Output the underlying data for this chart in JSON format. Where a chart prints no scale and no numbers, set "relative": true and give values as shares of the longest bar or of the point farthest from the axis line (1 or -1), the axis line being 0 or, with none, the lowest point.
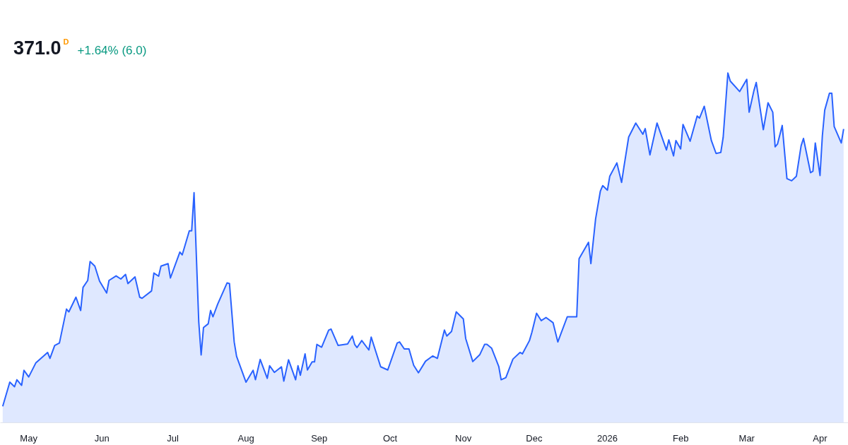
{
  "chart_data": {
    "type": "area",
    "title": "371.0",
    "annotations": [
      "D",
      "+1.64% (6.0)"
    ],
    "relative": true,
    "color": "#2962ff",
    "line_style": "solid",
    "tick_labels": "x",
    "xlim": [
      "2025-04-19",
      "2026-04-13"
    ],
    "xticks": [
      {
        "value": "2025-05-01",
        "label": "May"
      },
      {
        "value": "2025-06-01",
        "label": "Jun"
      },
      {
        "value": "2025-07-01",
        "label": "Jul"
      },
      {
        "value": "2025-08-01",
        "label": "Aug"
      },
      {
        "value": "2025-09-01",
        "label": "Sep"
      },
      {
        "value": "2025-10-01",
        "label": "Oct"
      },
      {
        "value": "2025-11-01",
        "label": "Nov"
      },
      {
        "value": "2025-12-01",
        "label": "Dec"
      },
      {
        "value": "2026-01-01",
        "label": "2026"
      },
      {
        "value": "2026-02-01",
        "label": "Feb"
      },
      {
        "value": "2026-03-01",
        "label": "Mar"
      },
      {
        "value": "2026-04-01",
        "label": "Apr"
      }
    ],
    "x": [
      "2025-04-20",
      "2025-04-23",
      "2025-04-25",
      "2025-04-26",
      "2025-04-28",
      "2025-04-29",
      "2025-05-01",
      "2025-05-04",
      "2025-05-09",
      "2025-05-10",
      "2025-05-12",
      "2025-05-14",
      "2025-05-17",
      "2025-05-18",
      "2025-05-21",
      "2025-05-23",
      "2025-05-24",
      "2025-05-26",
      "2025-05-27",
      "2025-05-29",
      "2025-05-31",
      "2025-06-03",
      "2025-06-04",
      "2025-06-07",
      "2025-06-09",
      "2025-06-11",
      "2025-06-12",
      "2025-06-15",
      "2025-06-17",
      "2025-06-18",
      "2025-06-22",
      "2025-06-23",
      "2025-06-25",
      "2025-06-26",
      "2025-06-29",
      "2025-06-30",
      "2025-07-04",
      "2025-07-05",
      "2025-07-08",
      "2025-07-09",
      "2025-07-10",
      "2025-07-12",
      "2025-07-13",
      "2025-07-14",
      "2025-07-16",
      "2025-07-17",
      "2025-07-18",
      "2025-07-20",
      "2025-07-24",
      "2025-07-25",
      "2025-07-27",
      "2025-07-28",
      "2025-08-01",
      "2025-08-04",
      "2025-08-05",
      "2025-08-07",
      "2025-08-10",
      "2025-08-11",
      "2025-08-13",
      "2025-08-16",
      "2025-08-17",
      "2025-08-19",
      "2025-08-22",
      "2025-08-23",
      "2025-08-24",
      "2025-08-26",
      "2025-08-27",
      "2025-08-29",
      "2025-08-30",
      "2025-08-31",
      "2025-09-02",
      "2025-09-05",
      "2025-09-06",
      "2025-09-09",
      "2025-09-13",
      "2025-09-15",
      "2025-09-16",
      "2025-09-17",
      "2025-09-19",
      "2025-09-22",
      "2025-09-23",
      "2025-09-27",
      "2025-09-30",
      "2025-10-04",
      "2025-10-05",
      "2025-10-07",
      "2025-10-09",
      "2025-10-11",
      "2025-10-13",
      "2025-10-16",
      "2025-10-19",
      "2025-10-21",
      "2025-10-24",
      "2025-10-25",
      "2025-10-27",
      "2025-10-29",
      "2025-11-01",
      "2025-11-02",
      "2025-11-05",
      "2025-11-08",
      "2025-11-10",
      "2025-11-11",
      "2025-11-13",
      "2025-11-16",
      "2025-11-17",
      "2025-11-19",
      "2025-11-22",
      "2025-11-25",
      "2025-11-26",
      "2025-11-29",
      "2025-11-30",
      "2025-12-02",
      "2025-12-04",
      "2025-12-06",
      "2025-12-09",
      "2025-12-11",
      "2025-12-15",
      "2025-12-19",
      "2025-12-20",
      "2025-12-24",
      "2025-12-25",
      "2025-12-27",
      "2025-12-29",
      "2025-12-30",
      "2026-01-01",
      "2026-01-02",
      "2026-01-05",
      "2026-01-07",
      "2026-01-08",
      "2026-01-10",
      "2026-01-13",
      "2026-01-16",
      "2026-01-17",
      "2026-01-19",
      "2026-01-22",
      "2026-01-25",
      "2026-01-26",
      "2026-01-27",
      "2026-01-29",
      "2026-01-30",
      "2026-02-01",
      "2026-02-02",
      "2026-02-05",
      "2026-02-08",
      "2026-02-09",
      "2026-02-11",
      "2026-02-14",
      "2026-02-16",
      "2026-02-18",
      "2026-02-19",
      "2026-02-21",
      "2026-02-22",
      "2026-02-26",
      "2026-03-01",
      "2026-03-02",
      "2026-03-04",
      "2026-03-05",
      "2026-03-08",
      "2026-03-10",
      "2026-03-12",
      "2026-03-13",
      "2026-03-14",
      "2026-03-16",
      "2026-03-18",
      "2026-03-20",
      "2026-03-22",
      "2026-03-24",
      "2026-03-25",
      "2026-03-28",
      "2026-03-29",
      "2026-03-30",
      "2026-04-01",
      "2026-04-02",
      "2026-04-03",
      "2026-04-05",
      "2026-04-06",
      "2026-04-07",
      "2026-04-10",
      "2026-04-11"
    ],
    "values": [
      0.047,
      0.116,
      0.103,
      0.123,
      0.107,
      0.15,
      0.131,
      0.171,
      0.201,
      0.184,
      0.221,
      0.228,
      0.325,
      0.317,
      0.359,
      0.321,
      0.387,
      0.407,
      0.461,
      0.448,
      0.405,
      0.371,
      0.407,
      0.42,
      0.411,
      0.424,
      0.398,
      0.417,
      0.359,
      0.356,
      0.377,
      0.428,
      0.419,
      0.448,
      0.455,
      0.414,
      0.488,
      0.48,
      0.549,
      0.549,
      0.658,
      0.288,
      0.194,
      0.272,
      0.283,
      0.321,
      0.303,
      0.339,
      0.4,
      0.398,
      0.231,
      0.19,
      0.116,
      0.15,
      0.123,
      0.181,
      0.127,
      0.163,
      0.144,
      0.16,
      0.119,
      0.18,
      0.123,
      0.163,
      0.136,
      0.197,
      0.151,
      0.174,
      0.174,
      0.224,
      0.216,
      0.265,
      0.268,
      0.221,
      0.225,
      0.248,
      0.224,
      0.215,
      0.235,
      0.208,
      0.245,
      0.16,
      0.151,
      0.228,
      0.231,
      0.211,
      0.211,
      0.164,
      0.143,
      0.176,
      0.191,
      0.184,
      0.265,
      0.248,
      0.261,
      0.317,
      0.297,
      0.241,
      0.175,
      0.195,
      0.224,
      0.224,
      0.213,
      0.161,
      0.123,
      0.129,
      0.182,
      0.201,
      0.197,
      0.235,
      0.258,
      0.313,
      0.292,
      0.301,
      0.286,
      0.231,
      0.303,
      0.303,
      0.469,
      0.516,
      0.455,
      0.583,
      0.662,
      0.678,
      0.665,
      0.705,
      0.743,
      0.687,
      0.732,
      0.817,
      0.857,
      0.825,
      0.841,
      0.766,
      0.857,
      0.799,
      0.78,
      0.809,
      0.763,
      0.807,
      0.783,
      0.853,
      0.805,
      0.877,
      0.871,
      0.905,
      0.807,
      0.77,
      0.773,
      0.816,
      1.0,
      0.977,
      0.947,
      0.982,
      0.888,
      0.949,
      0.973,
      0.838,
      0.915,
      0.888,
      0.789,
      0.797,
      0.85,
      0.698,
      0.692,
      0.705,
      0.792,
      0.813,
      0.715,
      0.719,
      0.8,
      0.707,
      0.821,
      0.894,
      0.942,
      0.942,
      0.847,
      0.8,
      0.84
    ]
  }
}
